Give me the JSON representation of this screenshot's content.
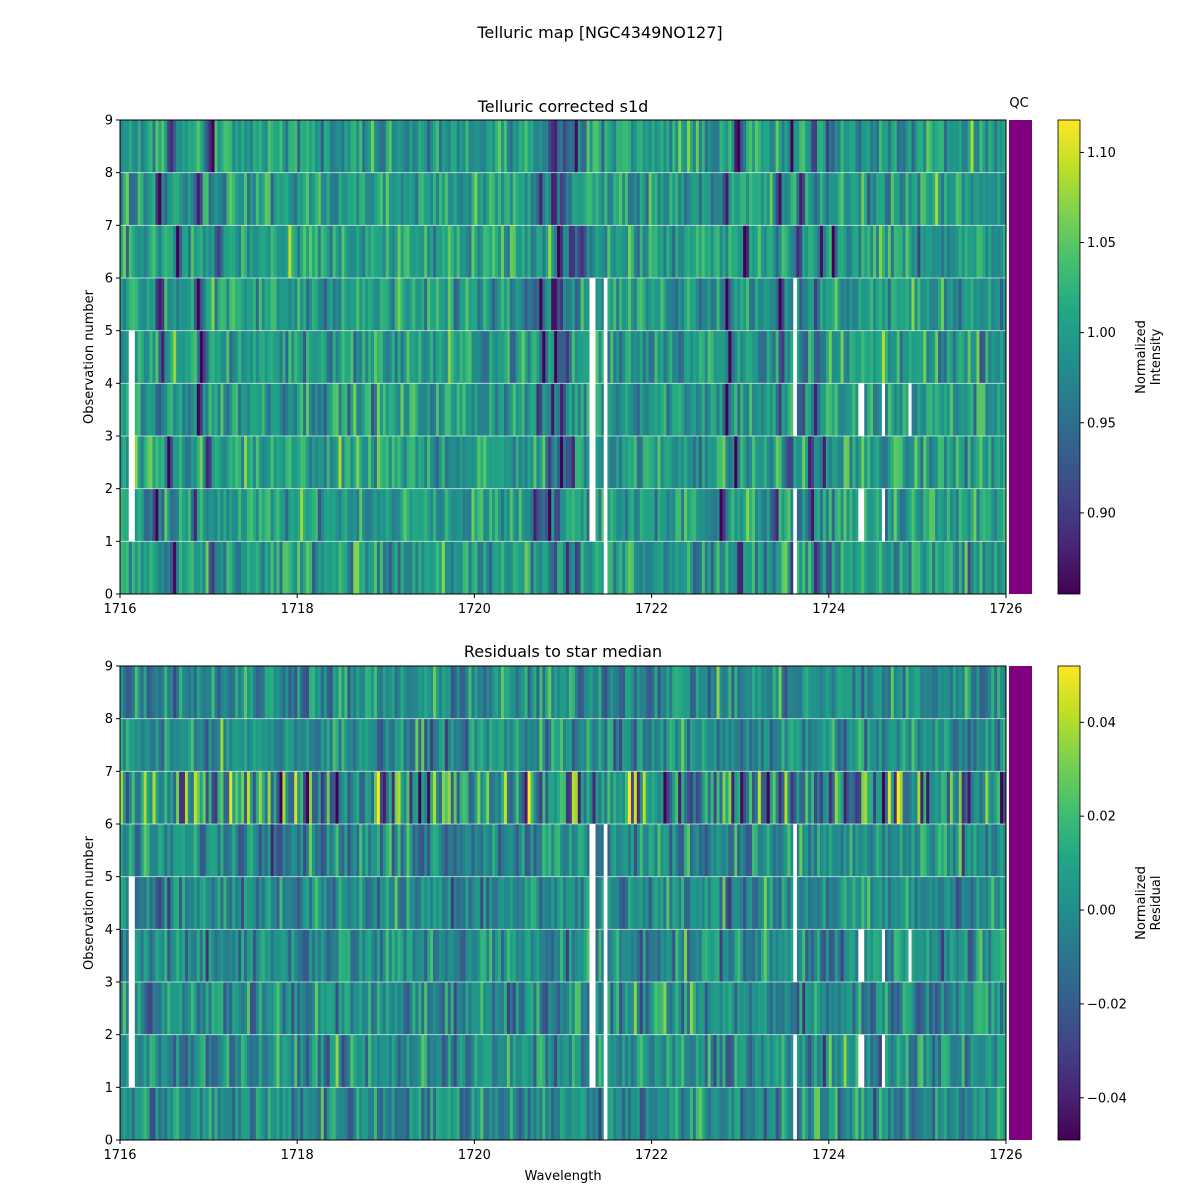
{
  "figure": {
    "title": "Telluric map [NGC4349NO127]"
  },
  "chart_data": [
    {
      "type": "heatmap",
      "title": "Telluric corrected s1d",
      "xlabel": "",
      "ylabel": "Observation number",
      "xlim": [
        1716,
        1726
      ],
      "ylim": [
        0,
        9
      ],
      "xticks": [
        "1716",
        "1718",
        "1720",
        "1722",
        "1724",
        "1726"
      ],
      "yticks": [
        "0",
        "1",
        "2",
        "3",
        "4",
        "5",
        "6",
        "7",
        "8",
        "9"
      ],
      "qc_label": "QC",
      "qc_color": "#800080",
      "colormap": "viridis",
      "colorbar": {
        "label": "Normalized\nIntensity",
        "range": [
          0.855,
          1.118
        ],
        "ticks": [
          "0.90",
          "0.95",
          "1.00",
          "1.05",
          "1.10"
        ]
      },
      "rows": 9,
      "baseline": 1.0,
      "absorption_lines": [
        {
          "wavelength": 1716.55,
          "depth": 0.14
        },
        {
          "wavelength": 1717.0,
          "depth": 0.13
        },
        {
          "wavelength": 1720.85,
          "depth": 0.14
        },
        {
          "wavelength": 1721.0,
          "depth": 0.13
        },
        {
          "wavelength": 1721.1,
          "depth": 0.12
        },
        {
          "wavelength": 1722.95,
          "depth": 0.15
        },
        {
          "wavelength": 1723.55,
          "depth": 0.12
        },
        {
          "wavelength": 1723.8,
          "depth": 0.11
        },
        {
          "wavelength": 1723.95,
          "depth": 0.1
        }
      ],
      "masked_regions": [
        {
          "rows": [
            1,
            2,
            3,
            4
          ],
          "wavelength": [
            1716.1,
            1716.15
          ]
        },
        {
          "rows": [
            1,
            2,
            3,
            4,
            5
          ],
          "wavelength": [
            1721.3,
            1721.36
          ]
        },
        {
          "rows": [
            0,
            1,
            2,
            3,
            4,
            5
          ],
          "wavelength": [
            1721.46,
            1721.5
          ]
        },
        {
          "rows": [
            0,
            1,
            3,
            4,
            5
          ],
          "wavelength": [
            1723.6,
            1723.64
          ]
        },
        {
          "rows": [
            1,
            3
          ],
          "wavelength": [
            1724.35,
            1724.39
          ]
        },
        {
          "rows": [
            1,
            3
          ],
          "wavelength": [
            1724.6,
            1724.63
          ]
        },
        {
          "rows": [
            3
          ],
          "wavelength": [
            1724.9,
            1724.93
          ]
        }
      ]
    },
    {
      "type": "heatmap",
      "title": "Residuals to star median",
      "xlabel": "Wavelength",
      "ylabel": "Observation number",
      "xlim": [
        1716,
        1726
      ],
      "ylim": [
        0,
        9
      ],
      "xticks": [
        "1716",
        "1718",
        "1720",
        "1722",
        "1724",
        "1726"
      ],
      "yticks": [
        "0",
        "1",
        "2",
        "3",
        "4",
        "5",
        "6",
        "7",
        "8",
        "9"
      ],
      "qc_color": "#800080",
      "colormap": "viridis",
      "colorbar": {
        "label": "Normalized\nResidual",
        "range": [
          -0.049,
          0.052
        ],
        "ticks": [
          "−0.04",
          "−0.02",
          "0.00",
          "0.02",
          "0.04"
        ]
      },
      "rows": 9,
      "baseline": 0.0,
      "noisy_rows": [
        6
      ],
      "masked_regions": [
        {
          "rows": [
            1,
            2,
            3,
            4
          ],
          "wavelength": [
            1716.1,
            1716.15
          ]
        },
        {
          "rows": [
            1,
            2,
            3,
            4,
            5
          ],
          "wavelength": [
            1721.3,
            1721.36
          ]
        },
        {
          "rows": [
            0,
            1,
            2,
            3,
            4,
            5
          ],
          "wavelength": [
            1721.46,
            1721.5
          ]
        },
        {
          "rows": [
            0,
            1,
            3,
            4,
            5
          ],
          "wavelength": [
            1723.6,
            1723.64
          ]
        },
        {
          "rows": [
            1,
            3
          ],
          "wavelength": [
            1724.35,
            1724.39
          ]
        },
        {
          "rows": [
            1,
            3
          ],
          "wavelength": [
            1724.6,
            1724.63
          ]
        },
        {
          "rows": [
            3
          ],
          "wavelength": [
            1724.9,
            1724.93
          ]
        }
      ]
    }
  ]
}
